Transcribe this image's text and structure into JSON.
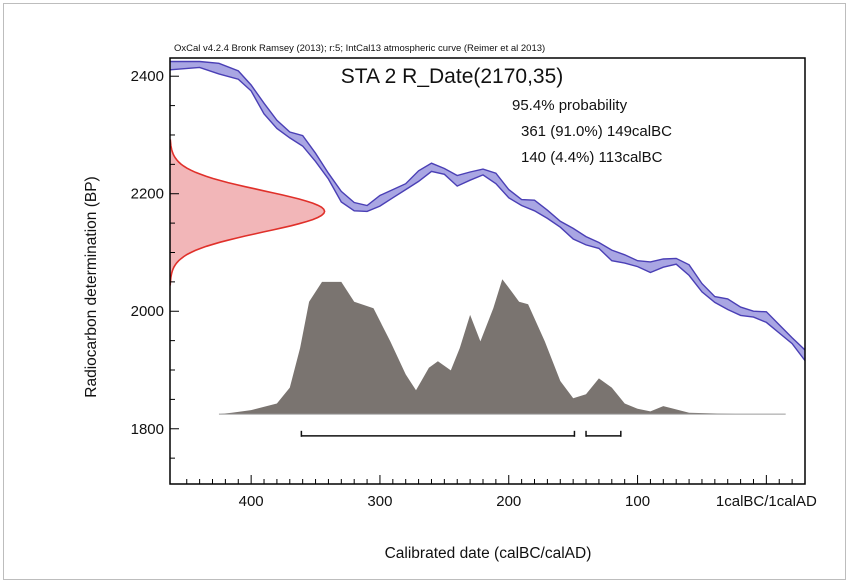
{
  "chart_data": {
    "type": "area",
    "header_note": "OxCal v4.2.4 Bronk Ramsey (2013); r:5; IntCal13 atmospheric curve (Reimer et al 2013)",
    "title": "STA 2 R_Date(2170,35)",
    "annotations": [
      "95.4% probability",
      "361 (91.0%) 149calBC",
      "140 (4.4%) 113calBC"
    ],
    "xlabel": "Calibrated date (calBC/calAD)",
    "ylabel": "Radiocarbon determination (BP)",
    "x_ticks": [
      {
        "value": 400,
        "label": "400"
      },
      {
        "value": 300,
        "label": "300"
      },
      {
        "value": 200,
        "label": "200"
      },
      {
        "value": 100,
        "label": "100"
      },
      {
        "value": 0,
        "label": "1calBC/1calAD"
      }
    ],
    "y_ticks": [
      2400,
      2200,
      2000,
      1800
    ],
    "xlim": [
      463,
      -30
    ],
    "ylim": [
      1706,
      2431
    ],
    "calibration_curve": {
      "name": "IntCal13",
      "color": "#4a3fb5",
      "fill": "#a9a6e3",
      "points": [
        [
          463,
          2418
        ],
        [
          440,
          2420
        ],
        [
          425,
          2413
        ],
        [
          410,
          2402
        ],
        [
          400,
          2380
        ],
        [
          390,
          2345
        ],
        [
          380,
          2318
        ],
        [
          370,
          2300
        ],
        [
          360,
          2290
        ],
        [
          350,
          2262
        ],
        [
          340,
          2230
        ],
        [
          330,
          2195
        ],
        [
          320,
          2178
        ],
        [
          310,
          2175
        ],
        [
          300,
          2188
        ],
        [
          290,
          2200
        ],
        [
          280,
          2212
        ],
        [
          270,
          2230
        ],
        [
          260,
          2245
        ],
        [
          250,
          2238
        ],
        [
          240,
          2222
        ],
        [
          230,
          2230
        ],
        [
          220,
          2237
        ],
        [
          210,
          2226
        ],
        [
          200,
          2200
        ],
        [
          190,
          2185
        ],
        [
          180,
          2180
        ],
        [
          170,
          2165
        ],
        [
          160,
          2148
        ],
        [
          150,
          2132
        ],
        [
          140,
          2120
        ],
        [
          130,
          2112
        ],
        [
          120,
          2095
        ],
        [
          110,
          2089
        ],
        [
          100,
          2081
        ],
        [
          90,
          2075
        ],
        [
          80,
          2082
        ],
        [
          70,
          2085
        ],
        [
          60,
          2070
        ],
        [
          50,
          2040
        ],
        [
          40,
          2020
        ],
        [
          30,
          2012
        ],
        [
          20,
          2000
        ],
        [
          10,
          1995
        ],
        [
          0,
          1990
        ],
        [
          -10,
          1970
        ],
        [
          -20,
          1950
        ],
        [
          -30,
          1925
        ]
      ],
      "band_width": [
        14,
        10,
        18
      ]
    },
    "radiocarbon_distribution": {
      "mean": 2170,
      "sigma": 35,
      "color": "#e0302a",
      "fill": "#f0a9ab"
    },
    "calibrated_distribution": {
      "color": "#7a7470",
      "baseline_y": 1825,
      "max_height_bp": 225,
      "points": [
        [
          425,
          0
        ],
        [
          415,
          0.01
        ],
        [
          400,
          0.03
        ],
        [
          380,
          0.08
        ],
        [
          370,
          0.2
        ],
        [
          362,
          0.5
        ],
        [
          355,
          0.85
        ],
        [
          345,
          1.0
        ],
        [
          330,
          1.0
        ],
        [
          320,
          0.85
        ],
        [
          305,
          0.8
        ],
        [
          292,
          0.55
        ],
        [
          280,
          0.3
        ],
        [
          272,
          0.18
        ],
        [
          262,
          0.35
        ],
        [
          255,
          0.4
        ],
        [
          245,
          0.33
        ],
        [
          238,
          0.5
        ],
        [
          230,
          0.75
        ],
        [
          222,
          0.55
        ],
        [
          212,
          0.8
        ],
        [
          205,
          1.02
        ],
        [
          198,
          0.93
        ],
        [
          192,
          0.85
        ],
        [
          185,
          0.83
        ],
        [
          172,
          0.55
        ],
        [
          160,
          0.25
        ],
        [
          150,
          0.12
        ],
        [
          140,
          0.15
        ],
        [
          130,
          0.27
        ],
        [
          120,
          0.2
        ],
        [
          110,
          0.08
        ],
        [
          100,
          0.04
        ],
        [
          90,
          0.02
        ],
        [
          80,
          0.06
        ],
        [
          72,
          0.04
        ],
        [
          60,
          0.01
        ],
        [
          20,
          0
        ]
      ]
    },
    "probability_ranges": [
      {
        "from": 361,
        "to": 149,
        "label": "361 (91.0%) 149calBC"
      },
      {
        "from": 140,
        "to": 113,
        "label": "140 (4.4%) 113calBC"
      }
    ]
  }
}
